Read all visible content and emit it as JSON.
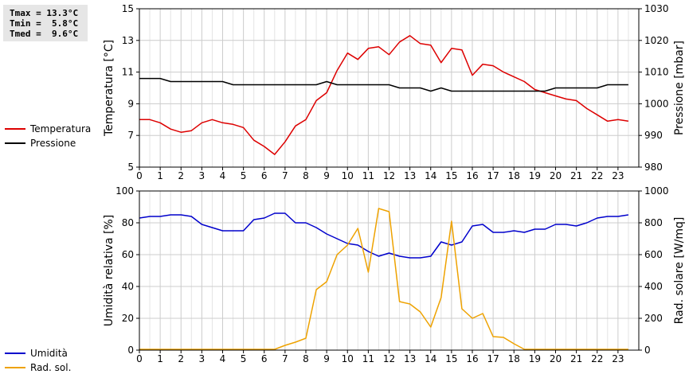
{
  "stats": {
    "tmax": "Tmax = 13.3°C",
    "tmin": "Tmin =  5.8°C",
    "tmed": "Tmed =  9.6°C"
  },
  "chart_data": [
    {
      "type": "line",
      "x_ticks": [
        "0",
        "1",
        "2",
        "3",
        "4",
        "5",
        "6",
        "7",
        "8",
        "9",
        "10",
        "11",
        "12",
        "13",
        "14",
        "15",
        "16",
        "17",
        "18",
        "19",
        "20",
        "21",
        "22",
        "23"
      ],
      "xlim": [
        0,
        24
      ],
      "ylabel": "Temperatura [°C]",
      "ylim": [
        5,
        15
      ],
      "y_ticks": [
        "5",
        "7",
        "9",
        "11",
        "13",
        "15"
      ],
      "y2label": "Pressione [mbar]",
      "y2lim": [
        980,
        1030
      ],
      "y2_ticks": [
        "980",
        "990",
        "1000",
        "1010",
        "1020",
        "1030"
      ],
      "grid": true,
      "series": [
        {
          "name": "Temperatura",
          "color": "#dd0000",
          "axis": "left",
          "x": [
            0,
            0.5,
            1,
            1.5,
            2,
            2.5,
            3,
            3.5,
            4,
            4.5,
            5,
            5.5,
            6,
            6.5,
            7,
            7.5,
            8,
            8.5,
            9,
            9.5,
            10,
            10.5,
            11,
            11.5,
            12,
            12.5,
            13,
            13.5,
            14,
            14.5,
            15,
            15.5,
            16,
            16.5,
            17,
            17.5,
            18,
            18.5,
            19,
            19.5,
            20,
            20.5,
            21,
            21.5,
            22,
            22.5,
            23,
            23.5
          ],
          "values": [
            8.0,
            8.0,
            7.8,
            7.4,
            7.2,
            7.3,
            7.8,
            8.0,
            7.8,
            7.7,
            7.5,
            6.7,
            6.3,
            5.8,
            6.6,
            7.6,
            8.0,
            9.2,
            9.7,
            11.1,
            12.2,
            11.8,
            12.5,
            12.6,
            12.1,
            12.9,
            13.3,
            12.8,
            12.7,
            11.6,
            12.5,
            12.4,
            10.8,
            11.5,
            11.4,
            11.0,
            10.7,
            10.4,
            9.9,
            9.7,
            9.5,
            9.3,
            9.2,
            8.7,
            8.3,
            7.9,
            8.0,
            7.9
          ]
        },
        {
          "name": "Pressione",
          "color": "#000000",
          "axis": "right",
          "x": [
            0,
            1,
            1.5,
            2,
            3,
            4,
            4.5,
            5,
            6,
            7,
            8,
            8.5,
            9,
            9.5,
            10,
            11,
            12,
            12.5,
            13,
            13.5,
            14,
            14.5,
            15,
            16,
            17,
            18,
            19,
            19.5,
            20,
            21,
            22,
            22.5,
            23,
            23.5
          ],
          "values": [
            1008,
            1008,
            1007,
            1007,
            1007,
            1007,
            1006,
            1006,
            1006,
            1006,
            1006,
            1006,
            1007,
            1006,
            1006,
            1006,
            1006,
            1005,
            1005,
            1005,
            1004,
            1005,
            1004,
            1004,
            1004,
            1004,
            1004,
            1004,
            1005,
            1005,
            1005,
            1006,
            1006,
            1006
          ]
        }
      ]
    },
    {
      "type": "line",
      "x_ticks": [
        "0",
        "1",
        "2",
        "3",
        "4",
        "5",
        "6",
        "7",
        "8",
        "9",
        "10",
        "11",
        "12",
        "13",
        "14",
        "15",
        "16",
        "17",
        "18",
        "19",
        "20",
        "21",
        "22",
        "23"
      ],
      "xlim": [
        0,
        24
      ],
      "ylabel": "Umidità relativa [%]",
      "ylim": [
        0,
        100
      ],
      "y_ticks": [
        "0",
        "20",
        "40",
        "60",
        "80",
        "100"
      ],
      "y2label": "Rad. solare [W/mq]",
      "y2lim": [
        0,
        1000
      ],
      "y2_ticks": [
        "0",
        "200",
        "400",
        "600",
        "800",
        "1000"
      ],
      "grid": true,
      "series": [
        {
          "name": "Umidità",
          "color": "#0000cc",
          "axis": "left",
          "x": [
            0,
            0.5,
            1,
            1.5,
            2,
            2.5,
            3,
            3.5,
            4,
            4.5,
            5,
            5.5,
            6,
            6.5,
            7,
            7.5,
            8,
            8.5,
            9,
            9.5,
            10,
            10.5,
            11,
            11.5,
            12,
            12.5,
            13,
            13.5,
            14,
            14.5,
            15,
            15.5,
            16,
            16.5,
            17,
            17.5,
            18,
            18.5,
            19,
            19.5,
            20,
            20.5,
            21,
            21.5,
            22,
            22.5,
            23,
            23.5
          ],
          "values": [
            83,
            84,
            84,
            85,
            85,
            84,
            79,
            77,
            75,
            75,
            75,
            82,
            83,
            86,
            86,
            80,
            80,
            77,
            73,
            70,
            67,
            66,
            62,
            59,
            61,
            59,
            58,
            58,
            59,
            68,
            66,
            68,
            78,
            79,
            74,
            74,
            75,
            74,
            76,
            76,
            79,
            79,
            78,
            80,
            83,
            84,
            84,
            85
          ]
        },
        {
          "name": "Rad. sol.",
          "color": "#eea200",
          "axis": "right",
          "x": [
            0,
            6.5,
            7,
            7.5,
            8,
            8.5,
            9,
            9.5,
            10,
            10.5,
            11,
            11.5,
            12,
            12.5,
            13,
            13.5,
            14,
            14.5,
            15,
            15.5,
            16,
            16.5,
            17,
            17.5,
            18,
            18.5,
            19,
            23.5
          ],
          "values": [
            5,
            5,
            30,
            50,
            75,
            380,
            430,
            600,
            660,
            765,
            490,
            890,
            870,
            305,
            290,
            240,
            145,
            330,
            810,
            260,
            200,
            230,
            85,
            80,
            40,
            5,
            5,
            5
          ]
        }
      ]
    }
  ]
}
